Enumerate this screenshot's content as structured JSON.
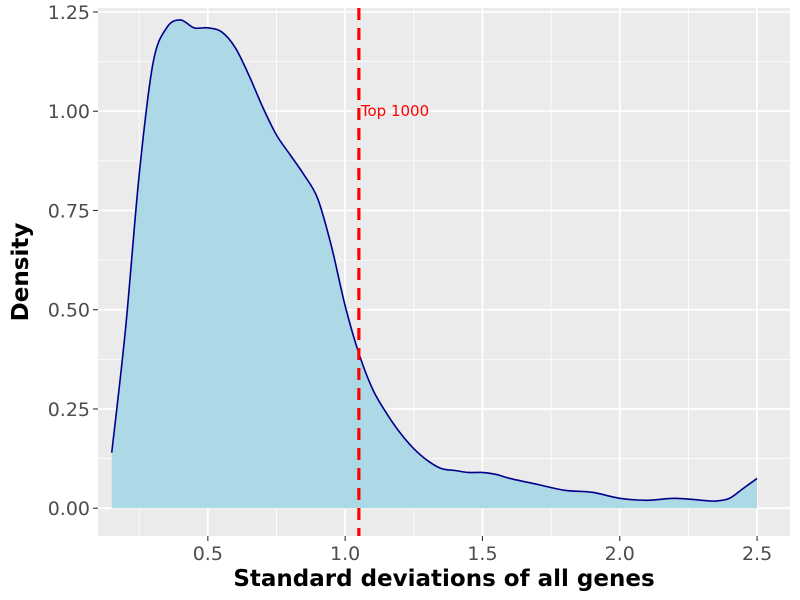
{
  "chart_data": {
    "type": "area",
    "title": "",
    "xlabel": "Standard deviations of all genes",
    "ylabel": "Density",
    "xlim": [
      0.1,
      2.62
    ],
    "ylim": [
      -0.07,
      1.26
    ],
    "x_ticks": [
      0.5,
      1.0,
      1.5,
      2.0,
      2.5
    ],
    "x_tick_labels": [
      "0.5",
      "1.0",
      "1.5",
      "2.0",
      "2.5"
    ],
    "y_ticks": [
      0.0,
      0.25,
      0.5,
      0.75,
      1.0,
      1.25
    ],
    "y_tick_labels": [
      "0.00",
      "0.25",
      "0.50",
      "0.75",
      "1.00",
      "1.25"
    ],
    "grid": true,
    "background_color": "#ebebeb",
    "fill_color": "#add8e6",
    "line_color": "#00008b",
    "series": [
      {
        "x": [
          0.15,
          0.2,
          0.25,
          0.3,
          0.35,
          0.4,
          0.45,
          0.5,
          0.55,
          0.6,
          0.65,
          0.7,
          0.75,
          0.8,
          0.85,
          0.9,
          0.95,
          1.0,
          1.05,
          1.1,
          1.15,
          1.2,
          1.25,
          1.3,
          1.35,
          1.4,
          1.45,
          1.5,
          1.55,
          1.6,
          1.7,
          1.8,
          1.9,
          2.0,
          2.1,
          2.2,
          2.3,
          2.35,
          2.4,
          2.45,
          2.5
        ],
        "y": [
          0.14,
          0.45,
          0.84,
          1.12,
          1.21,
          1.23,
          1.21,
          1.21,
          1.2,
          1.16,
          1.09,
          1.01,
          0.94,
          0.89,
          0.84,
          0.78,
          0.66,
          0.51,
          0.39,
          0.3,
          0.24,
          0.19,
          0.15,
          0.12,
          0.1,
          0.095,
          0.09,
          0.09,
          0.085,
          0.075,
          0.06,
          0.045,
          0.04,
          0.025,
          0.02,
          0.025,
          0.02,
          0.018,
          0.025,
          0.05,
          0.075
        ]
      }
    ],
    "vline": {
      "x": 1.05,
      "color": "#ff0000",
      "style": "dashed",
      "label": "Top 1000",
      "label_y": 1.0
    }
  }
}
